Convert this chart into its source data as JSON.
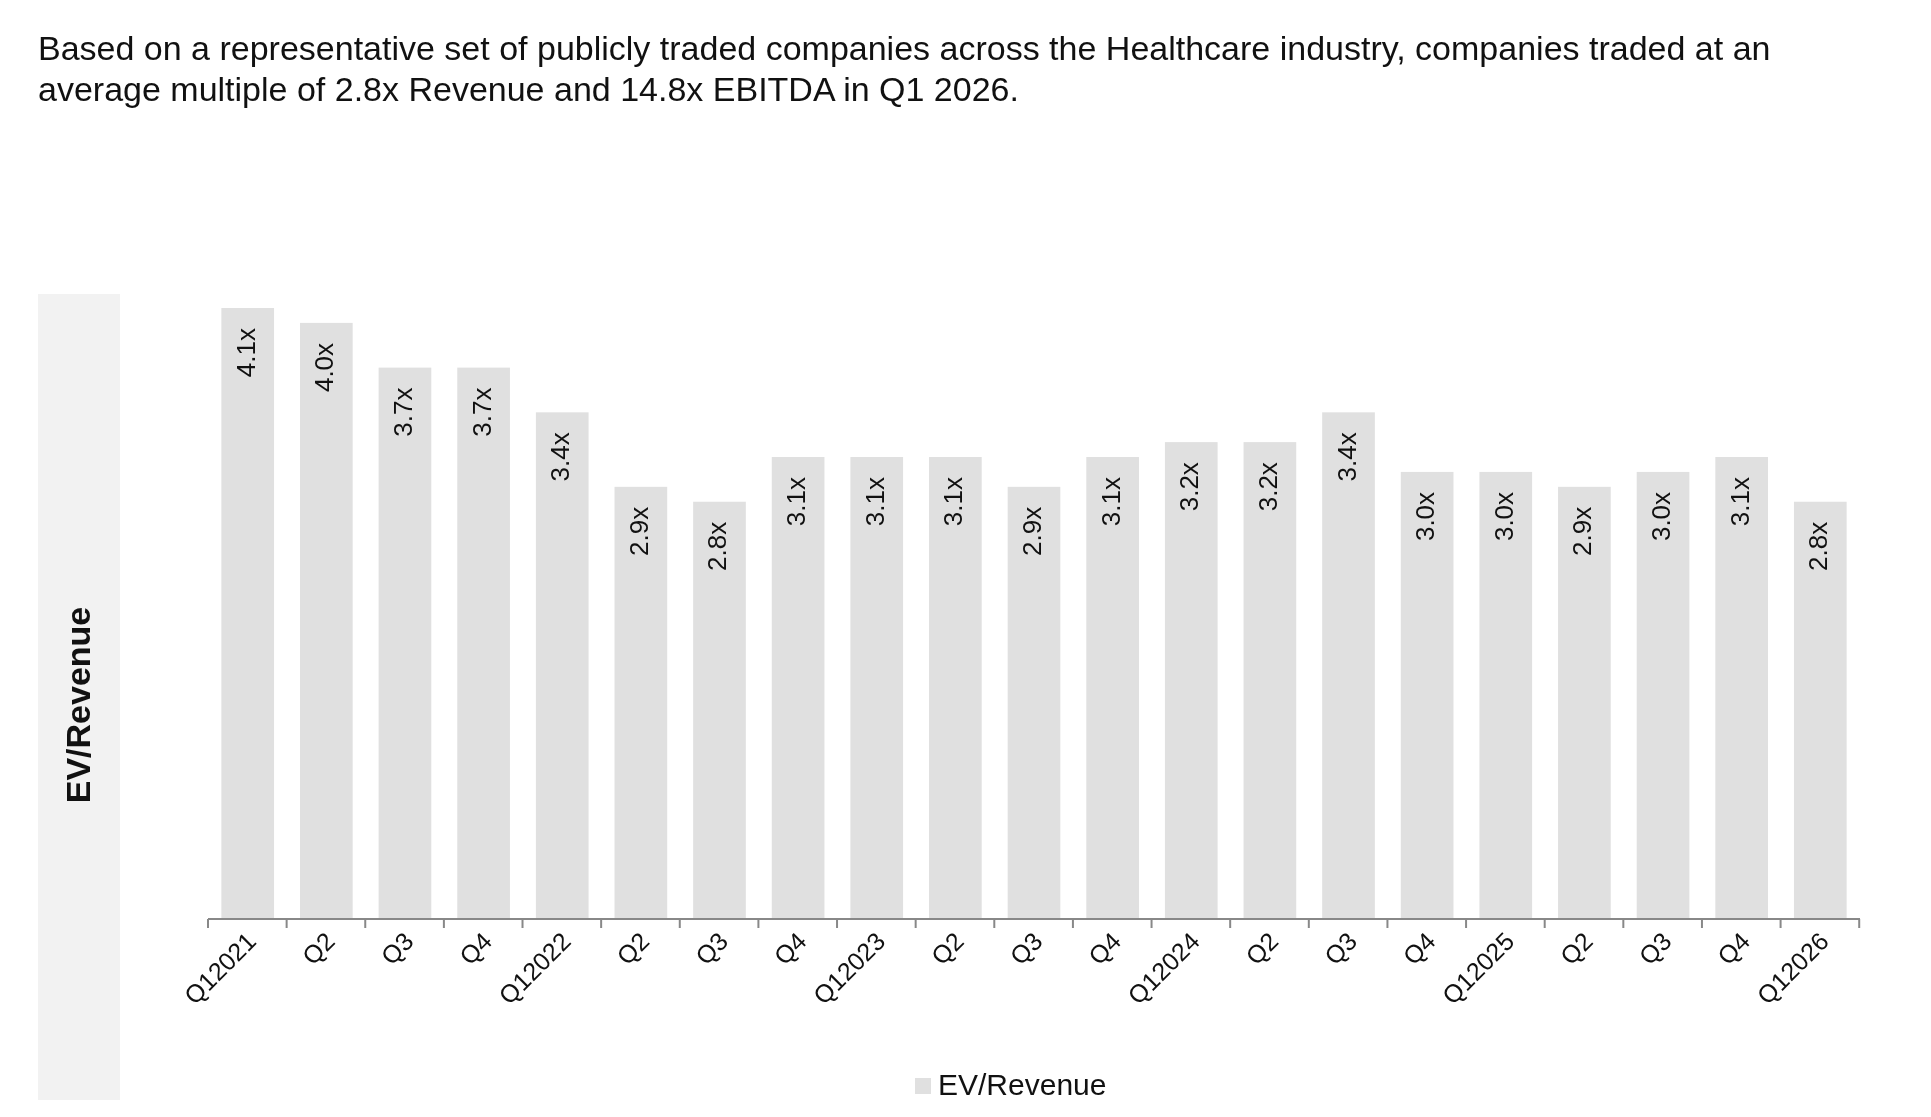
{
  "chart_data": {
    "type": "bar",
    "title": "Based on a representative set of publicly traded companies across the Healthcare industry, companies traded at an average multiple of 2.8x Revenue and 14.8x EBITDA in Q1 2026.",
    "ylabel": "EV/Revenue",
    "categories": [
      "Q12021",
      "Q2",
      "Q3",
      "Q4",
      "Q12022",
      "Q2",
      "Q3",
      "Q4",
      "Q12023",
      "Q2",
      "Q3",
      "Q4",
      "Q12024",
      "Q2",
      "Q3",
      "Q4",
      "Q12025",
      "Q2",
      "Q3",
      "Q4",
      "Q12026"
    ],
    "series": [
      {
        "name": "EV/Revenue",
        "color": "#e0e0e0",
        "values": [
          4.1,
          4.0,
          3.7,
          3.7,
          3.4,
          2.9,
          2.8,
          3.1,
          3.1,
          3.1,
          2.9,
          3.1,
          3.2,
          3.2,
          3.4,
          3.0,
          3.0,
          2.9,
          3.0,
          3.1,
          2.8
        ],
        "value_labels": [
          "4.1x",
          "4.0x",
          "3.7x",
          "3.7x",
          "3.4x",
          "2.9x",
          "2.8x",
          "3.1x",
          "3.1x",
          "3.1x",
          "2.9x",
          "3.1x",
          "3.2x",
          "3.2x",
          "3.4x",
          "3.0x",
          "3.0x",
          "2.9x",
          "3.0x",
          "3.1x",
          "2.8x"
        ]
      }
    ],
    "legend": "bottom"
  }
}
